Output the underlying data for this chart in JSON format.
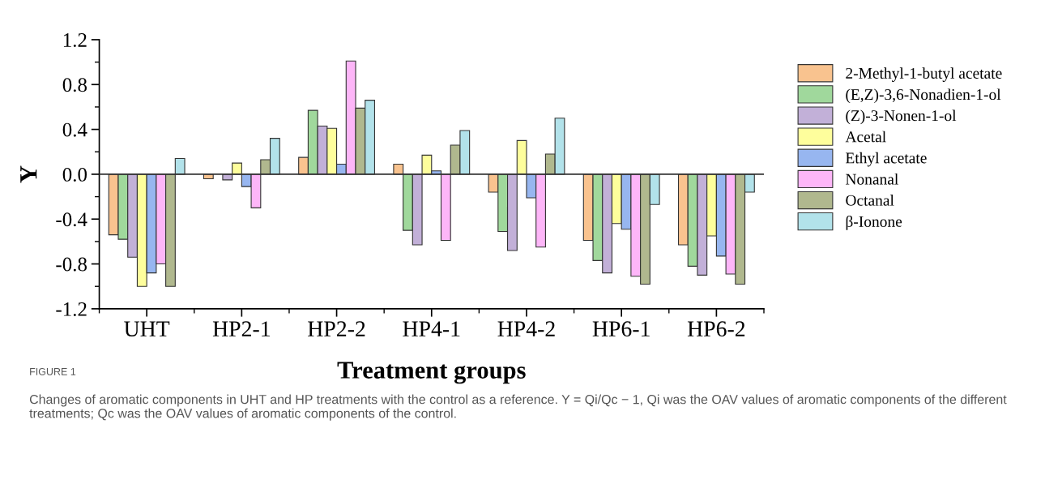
{
  "chart_data": {
    "type": "bar",
    "xlabel": "Treatment groups",
    "ylabel": "Y",
    "categories": [
      "UHT",
      "HP2-1",
      "HP2-2",
      "HP4-1",
      "HP4-2",
      "HP6-1",
      "HP6-2"
    ],
    "series": [
      {
        "name": "2-Methyl-1-butyl acetate",
        "color": "#f9c38f",
        "values": [
          -0.54,
          -0.04,
          0.15,
          0.09,
          -0.16,
          -0.59,
          -0.63
        ]
      },
      {
        "name": "(E,Z)-3,6-Nonadien-1-ol",
        "color": "#a0d89c",
        "values": [
          -0.58,
          null,
          0.57,
          -0.5,
          -0.51,
          -0.77,
          -0.82
        ]
      },
      {
        "name": "(Z)-3-Nonen-1-ol",
        "color": "#c2b0d8",
        "values": [
          -0.74,
          -0.05,
          0.43,
          -0.63,
          -0.68,
          -0.88,
          -0.9
        ]
      },
      {
        "name": "Acetal",
        "color": "#fefe9c",
        "values": [
          -1.0,
          0.1,
          0.41,
          0.17,
          0.3,
          -0.44,
          -0.55
        ]
      },
      {
        "name": "Ethyl acetate",
        "color": "#97b6f0",
        "values": [
          -0.88,
          -0.11,
          0.09,
          0.03,
          -0.21,
          -0.49,
          -0.73
        ]
      },
      {
        "name": "Nonanal",
        "color": "#fdb6f8",
        "values": [
          -0.8,
          -0.3,
          1.01,
          -0.59,
          -0.65,
          -0.91,
          -0.89
        ]
      },
      {
        "name": "Octanal",
        "color": "#b0b88e",
        "values": [
          -1.0,
          0.13,
          0.59,
          0.26,
          0.18,
          -0.98,
          -0.98
        ]
      },
      {
        "name": "β-Ionone",
        "color": "#b2e2ea",
        "values": [
          0.14,
          0.32,
          0.66,
          0.39,
          0.5,
          -0.27,
          -0.16
        ]
      }
    ],
    "ylim": [
      -1.2,
      1.2
    ],
    "yticks": [
      -1.2,
      -0.8,
      -0.4,
      {
        "value": 0,
        "label": "0.0"
      },
      0.4,
      0.8,
      1.2
    ],
    "ref_lines": [
      {
        "axis": "y",
        "value": 0,
        "color": "#333333"
      }
    ],
    "legend": "right",
    "grid": false,
    "annotations": [
      "FIGURE 1",
      "Changes of aromatic components in UHT and HP treatments with the control as a reference. Y = Qi/Qc − 1, Qi was the OAV values of aromatic components of the different treatments; Qc was the OAV values of aromatic components of the control."
    ]
  }
}
